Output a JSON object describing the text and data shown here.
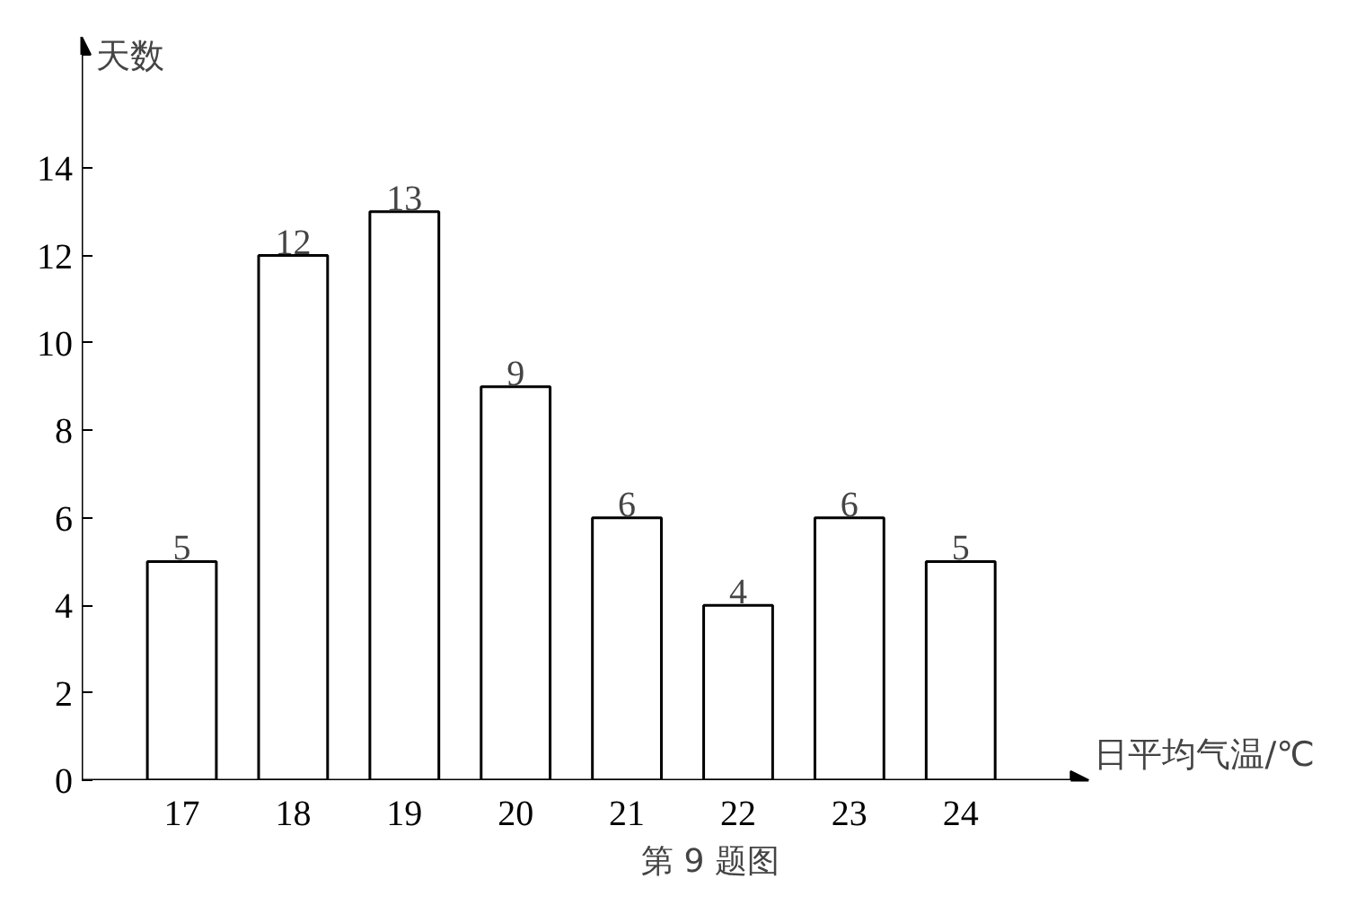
{
  "chart_data": {
    "type": "bar",
    "categories": [
      "17",
      "18",
      "19",
      "20",
      "21",
      "22",
      "23",
      "24"
    ],
    "values": [
      5,
      12,
      13,
      9,
      6,
      4,
      6,
      5
    ],
    "color": "#ffffff",
    "data_labels": true,
    "grid": false,
    "xlabel": "日平均气温/℃",
    "ylabel": "天数",
    "ylim": [
      0,
      17
    ],
    "yticks": [
      0,
      2,
      4,
      6,
      8,
      10,
      12,
      14
    ],
    "annotations": [
      "第 9 题图"
    ]
  }
}
